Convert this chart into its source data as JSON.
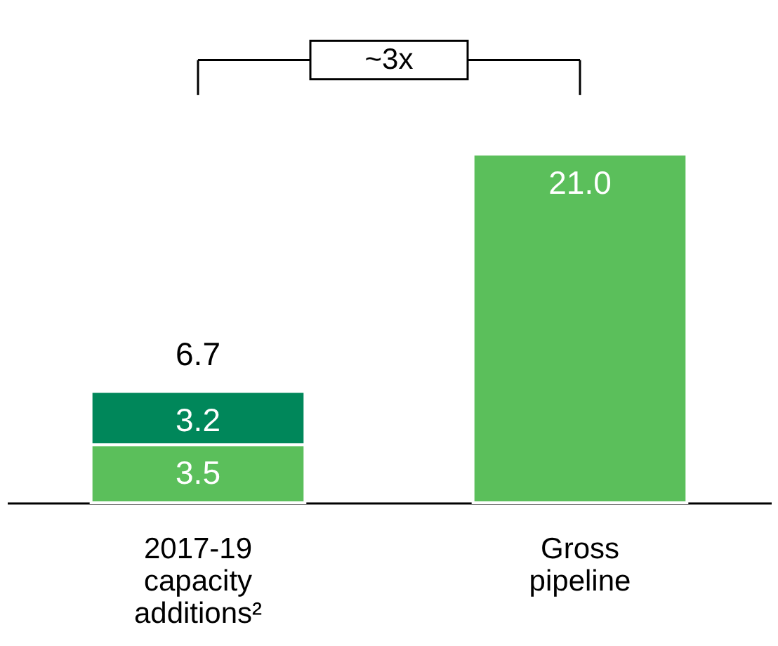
{
  "chart_data": {
    "type": "bar",
    "stacked": true,
    "categories": [
      "2017-19 capacity additions²",
      "Gross pipeline"
    ],
    "series": [
      {
        "color": "#5bbf5b",
        "values": [
          3.5,
          21.0
        ],
        "value_labels": [
          "3.5",
          "21.0"
        ]
      },
      {
        "color": "#00875a",
        "values": [
          3.2,
          null
        ],
        "value_labels": [
          "3.2",
          null
        ]
      }
    ],
    "totals": [
      "6.7",
      null
    ],
    "annotations": [
      "~3x"
    ],
    "grid": false,
    "legend": false
  }
}
